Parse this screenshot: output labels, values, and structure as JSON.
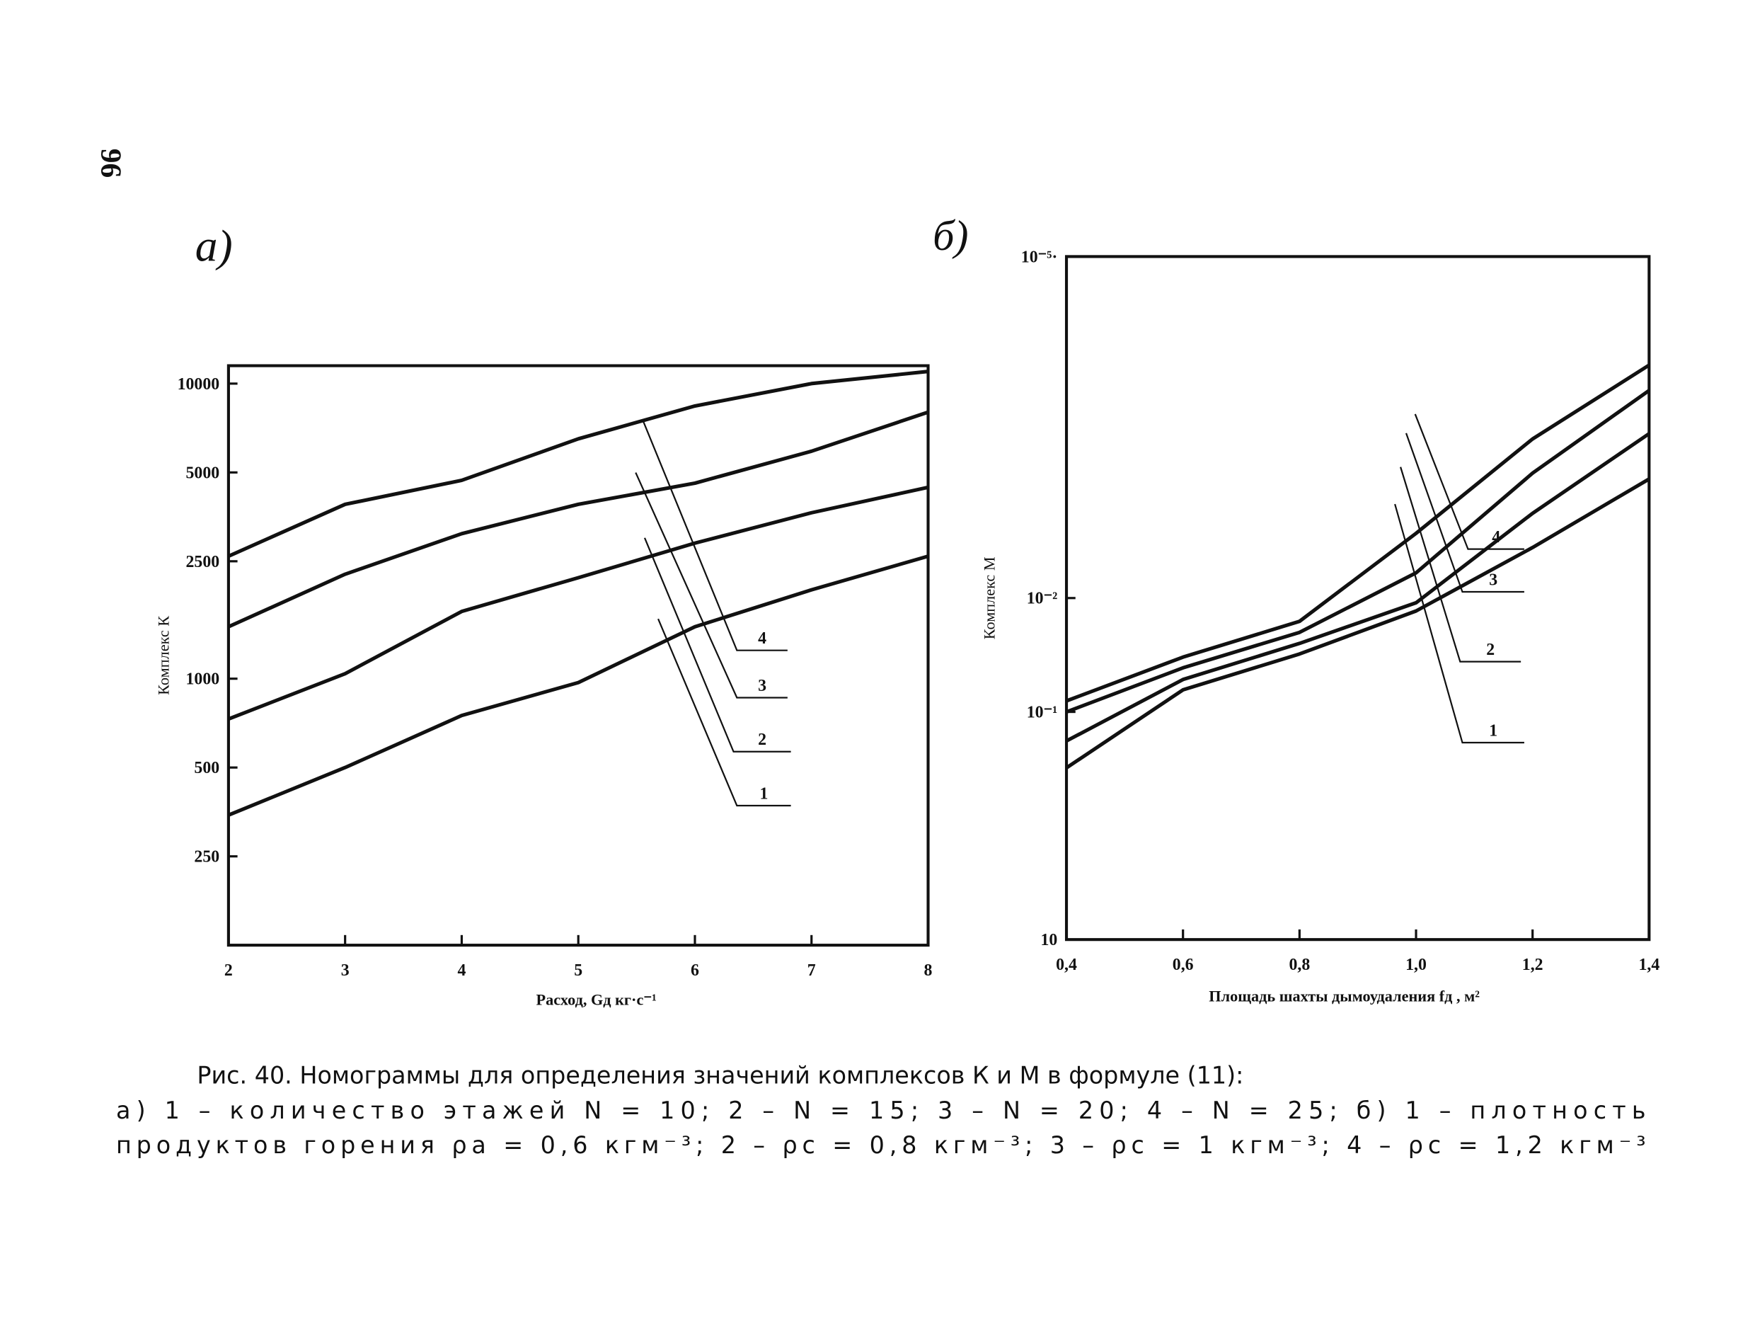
{
  "page_number": "96",
  "chart_data": [
    {
      "type": "line",
      "panel_label": "а)",
      "xlabel": "Расход,  Gд кг·с⁻¹",
      "ylabel": "Комплекс К",
      "x": [
        2,
        3,
        4,
        5,
        6,
        7,
        8
      ],
      "series": [
        {
          "name": "1",
          "color": "#111111",
          "values": [
            345,
            500,
            750,
            970,
            1500,
            2000,
            2600
          ]
        },
        {
          "name": "2",
          "color": "#111111",
          "values": [
            730,
            1040,
            1690,
            2200,
            2880,
            3650,
            4450
          ]
        },
        {
          "name": "3",
          "color": "#111111",
          "values": [
            1500,
            2260,
            3100,
            3900,
            4600,
            5900,
            8000
          ]
        },
        {
          "name": "4",
          "color": "#111111",
          "values": [
            2600,
            3900,
            4700,
            6500,
            8400,
            10000,
            11000
          ]
        }
      ],
      "xlim": [
        2,
        8
      ],
      "ylim": [
        125,
        11500
      ],
      "ylog": true,
      "xticks": [
        2,
        3,
        4,
        5,
        6,
        7,
        8
      ],
      "yticks": [
        250,
        500,
        1000,
        2500,
        5000,
        10000
      ]
    },
    {
      "type": "line",
      "panel_label": "б)",
      "xlabel": "Площадь шахты дымоудаления  fд , м²",
      "ylabel": "Комплекс М",
      "x": [
        0.4,
        0.6,
        0.8,
        1.0,
        1.2,
        1.4
      ],
      "series": [
        {
          "name": "1",
          "color": "#111111",
          "values": [
            0.31,
            0.064,
            0.031,
            0.013,
            0.0036,
            0.0009
          ]
        },
        {
          "name": "2",
          "color": "#111111",
          "values": [
            0.18,
            0.052,
            0.025,
            0.011,
            0.0018,
            0.00036
          ]
        },
        {
          "name": "3",
          "color": "#111111",
          "values": [
            0.1,
            0.041,
            0.02,
            0.006,
            0.0008,
            0.00015
          ]
        },
        {
          "name": "4",
          "color": "#111111",
          "values": [
            0.08,
            0.033,
            0.016,
            0.0027,
            0.0004,
            9e-05
          ]
        }
      ],
      "xlim": [
        0.4,
        1.4
      ],
      "ylim": [
        10,
        1e-05
      ],
      "ylog": true,
      "xticks": [
        {
          "value": 0.4,
          "label": "0,4"
        },
        {
          "value": 0.6,
          "label": "0,6"
        },
        {
          "value": 0.8,
          "label": "0,8"
        },
        {
          "value": 1.0,
          "label": "1,0"
        },
        {
          "value": 1.2,
          "label": "1,2"
        },
        {
          "value": 1.4,
          "label": "1,4"
        }
      ],
      "yticks": [
        {
          "value": 10,
          "label": "10"
        },
        {
          "value": 0.1,
          "label": "10⁻¹"
        },
        {
          "value": 0.01,
          "label": "10⁻²"
        },
        {
          "value": 1e-05,
          "label": "10⁻⁵·"
        }
      ]
    }
  ],
  "caption": {
    "line1": "Рис. 40. Номограммы для определения значений комплексов К и М в формуле (11):",
    "line2": "а) 1 – количество этажей N = 10; 2 – N = 15; 3 – N = 20; 4 – N = 25; б) 1 – плотность",
    "line3": "продуктов горения ρа = 0,6 кгм⁻³; 2 – ρс = 0,8 кгм⁻³; 3 – ρс = 1 кгм⁻³; 4 – ρс = 1,2 кгм⁻³"
  }
}
